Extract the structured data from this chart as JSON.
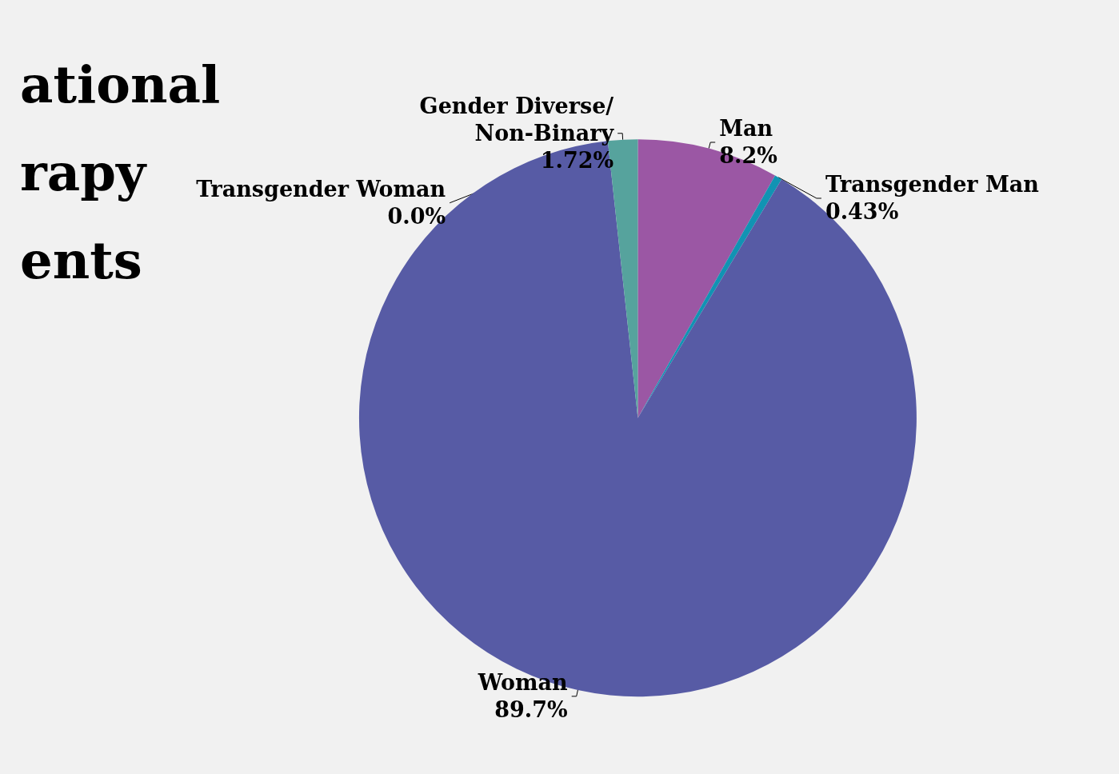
{
  "chart_data": {
    "type": "pie",
    "title": "ational\nrapy\nents",
    "categories": [
      "Man",
      "Transgender Man",
      "Woman",
      "Transgender Woman",
      "Gender Diverse/Non-Binary"
    ],
    "values": [
      8.2,
      0.43,
      89.7,
      0.0,
      1.72
    ],
    "value_labels": [
      "8.2%",
      "0.43%",
      "89.7%",
      "0.0%",
      "1.72%"
    ],
    "colors": [
      "#9b57a4",
      "#1193b3",
      "#575ba5",
      "#e07b39",
      "#56a39d"
    ],
    "legend": false
  }
}
